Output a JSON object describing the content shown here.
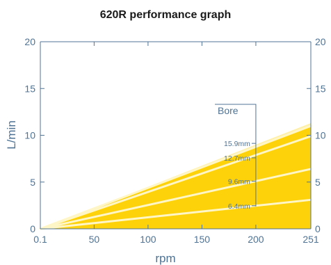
{
  "chart_data": {
    "type": "area",
    "title": "620R performance graph",
    "xlabel": "rpm",
    "ylabel": "L/min",
    "xlim": [
      0.1,
      251
    ],
    "ylim": [
      0,
      20
    ],
    "x_ticks": [
      "0.1",
      "50",
      "100",
      "150",
      "200",
      "251"
    ],
    "x_tick_values": [
      0.1,
      50,
      100,
      150,
      200,
      251
    ],
    "y_ticks": [
      "0",
      "5",
      "10",
      "15",
      "20"
    ],
    "y_tick_values": [
      0,
      5,
      10,
      15,
      20
    ],
    "legend_title": "Bore",
    "grid": false,
    "envelope_max_at_251": 11.3,
    "series": [
      {
        "name": "15.9mm",
        "x": [
          0.1,
          251
        ],
        "y": [
          0,
          11.0
        ]
      },
      {
        "name": "12.7mm",
        "x": [
          0.1,
          251
        ],
        "y": [
          0,
          9.9
        ]
      },
      {
        "name": "9.6mm",
        "x": [
          0.1,
          251
        ],
        "y": [
          0,
          6.4
        ]
      },
      {
        "name": "6.4mm",
        "x": [
          0.1,
          251
        ],
        "y": [
          0,
          3.1
        ]
      }
    ],
    "colors": {
      "fill": "#fdd20a",
      "line": "#fff6c8",
      "axis": "#4f7394",
      "title": "#1a1a1a"
    }
  }
}
